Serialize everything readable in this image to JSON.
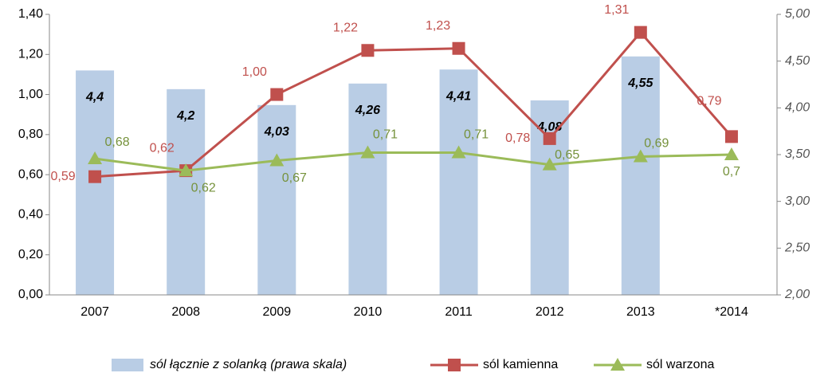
{
  "chart_data": {
    "type": "bar_line",
    "categories": [
      "2007",
      "2008",
      "2009",
      "2010",
      "2011",
      "2012",
      "2013",
      "*2014"
    ],
    "ylim": [
      0,
      1.4
    ],
    "yticks": [
      {
        "value": 0,
        "label": "0,00"
      },
      {
        "value": 0.2,
        "label": "0,20"
      },
      {
        "value": 0.4,
        "label": "0,40"
      },
      {
        "value": 0.6,
        "label": "0,60"
      },
      {
        "value": 0.8,
        "label": "0,80"
      },
      {
        "value": 1.0,
        "label": "1,00"
      },
      {
        "value": 1.2,
        "label": "1,20"
      },
      {
        "value": 1.4,
        "label": "1,40"
      }
    ],
    "y2lim": [
      2,
      5
    ],
    "y2ticks": [
      {
        "value": 2,
        "label": "2,00"
      },
      {
        "value": 2.5,
        "label": "2,50"
      },
      {
        "value": 3,
        "label": "3,00"
      },
      {
        "value": 3.5,
        "label": "3,50"
      },
      {
        "value": 4,
        "label": "4,00"
      },
      {
        "value": 4.5,
        "label": "4,50"
      },
      {
        "value": 5,
        "label": "5,00"
      }
    ],
    "series": [
      {
        "name": "sól łącznie z solanką (prawa skala)",
        "kind": "bar",
        "axis": "y2",
        "color": "#b9cde5",
        "values": [
          4.4,
          4.2,
          4.03,
          4.26,
          4.41,
          4.08,
          4.55,
          null
        ],
        "value_labels": [
          "4,4",
          "4,2",
          "4,03",
          "4,26",
          "4,41",
          "4,08",
          "4,55",
          null
        ]
      },
      {
        "name": "sól kamienna",
        "kind": "line",
        "color": "#c0504d",
        "values": [
          0.59,
          0.62,
          1.0,
          1.22,
          1.23,
          0.78,
          1.31,
          0.79
        ],
        "value_labels": [
          "0,59",
          "0,62",
          "1,00",
          "1,22",
          "1,23",
          "0,78",
          "1,31",
          "0,79"
        ]
      },
      {
        "name": "sól warzona",
        "kind": "line",
        "color": "#9bbb59",
        "values": [
          0.68,
          0.62,
          0.67,
          0.71,
          0.71,
          0.65,
          0.69,
          0.7
        ],
        "value_labels": [
          "0,68",
          "0,62",
          "0,67",
          "0,71",
          "0,71",
          "0,65",
          "0,69",
          "0,7"
        ]
      }
    ]
  }
}
